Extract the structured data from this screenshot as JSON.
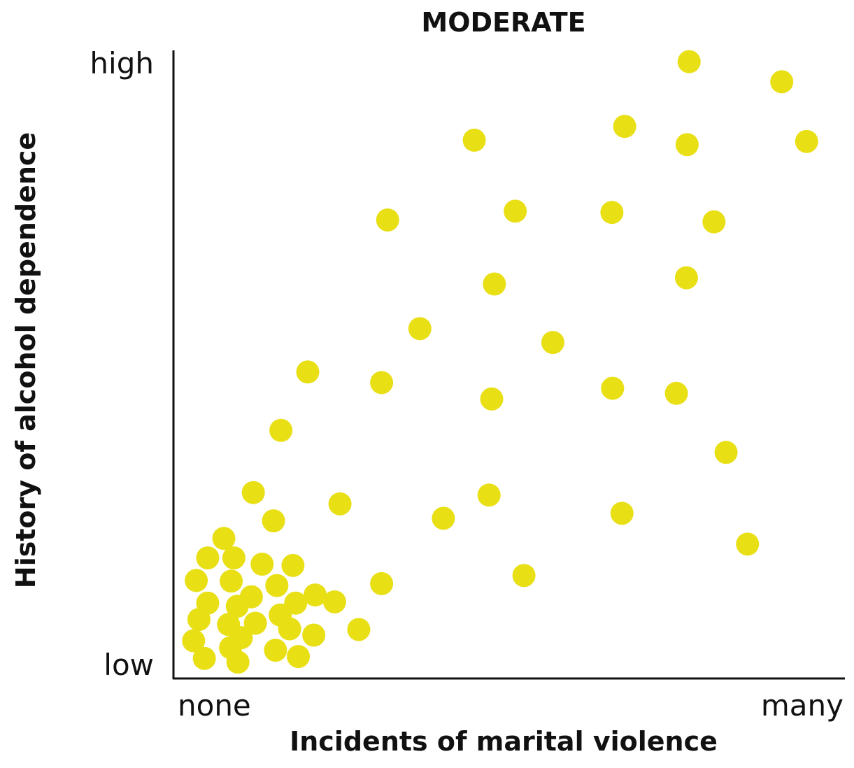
{
  "chart_data": {
    "type": "scatter",
    "title": "MODERATE",
    "xlabel": "Incidents of marital violence",
    "ylabel": "History of alcohol dependence",
    "x_tick_labels": [
      "none",
      "many"
    ],
    "y_tick_labels": [
      "low",
      "high"
    ],
    "xlim": [
      0,
      100
    ],
    "ylim": [
      0,
      100
    ],
    "grid": false,
    "marker_color": "#e8df14",
    "points": [
      [
        76.8,
        98.2
      ],
      [
        90.6,
        95.0
      ],
      [
        67.2,
        87.9
      ],
      [
        44.8,
        85.7
      ],
      [
        76.5,
        85.0
      ],
      [
        94.3,
        85.5
      ],
      [
        31.9,
        73.0
      ],
      [
        50.9,
        74.4
      ],
      [
        65.3,
        74.2
      ],
      [
        80.5,
        72.7
      ],
      [
        47.8,
        62.8
      ],
      [
        76.4,
        63.8
      ],
      [
        36.7,
        55.7
      ],
      [
        56.5,
        53.5
      ],
      [
        20.0,
        48.8
      ],
      [
        31.0,
        47.1
      ],
      [
        47.4,
        44.5
      ],
      [
        65.4,
        46.2
      ],
      [
        74.9,
        45.4
      ],
      [
        16.0,
        39.5
      ],
      [
        82.3,
        36.0
      ],
      [
        11.9,
        29.6
      ],
      [
        24.8,
        27.8
      ],
      [
        47.0,
        29.2
      ],
      [
        14.9,
        25.1
      ],
      [
        40.2,
        25.5
      ],
      [
        66.8,
        26.3
      ],
      [
        7.5,
        22.3
      ],
      [
        85.5,
        21.4
      ],
      [
        5.1,
        19.2
      ],
      [
        9.0,
        19.2
      ],
      [
        13.2,
        18.2
      ],
      [
        17.8,
        18.0
      ],
      [
        52.2,
        16.4
      ],
      [
        3.4,
        15.6
      ],
      [
        8.6,
        15.5
      ],
      [
        15.4,
        14.8
      ],
      [
        31.0,
        15.1
      ],
      [
        11.6,
        13.0
      ],
      [
        5.1,
        12.0
      ],
      [
        21.1,
        13.3
      ],
      [
        24.0,
        12.2
      ],
      [
        18.2,
        12.0
      ],
      [
        9.5,
        11.5
      ],
      [
        15.9,
        10.1
      ],
      [
        3.8,
        9.4
      ],
      [
        8.2,
        8.6
      ],
      [
        12.2,
        8.8
      ],
      [
        17.3,
        7.9
      ],
      [
        27.6,
        7.8
      ],
      [
        20.9,
        6.9
      ],
      [
        3.0,
        6.0
      ],
      [
        10.1,
        6.5
      ],
      [
        8.5,
        4.9
      ],
      [
        15.2,
        4.5
      ],
      [
        4.6,
        3.2
      ],
      [
        9.6,
        2.6
      ],
      [
        18.6,
        3.5
      ]
    ]
  }
}
